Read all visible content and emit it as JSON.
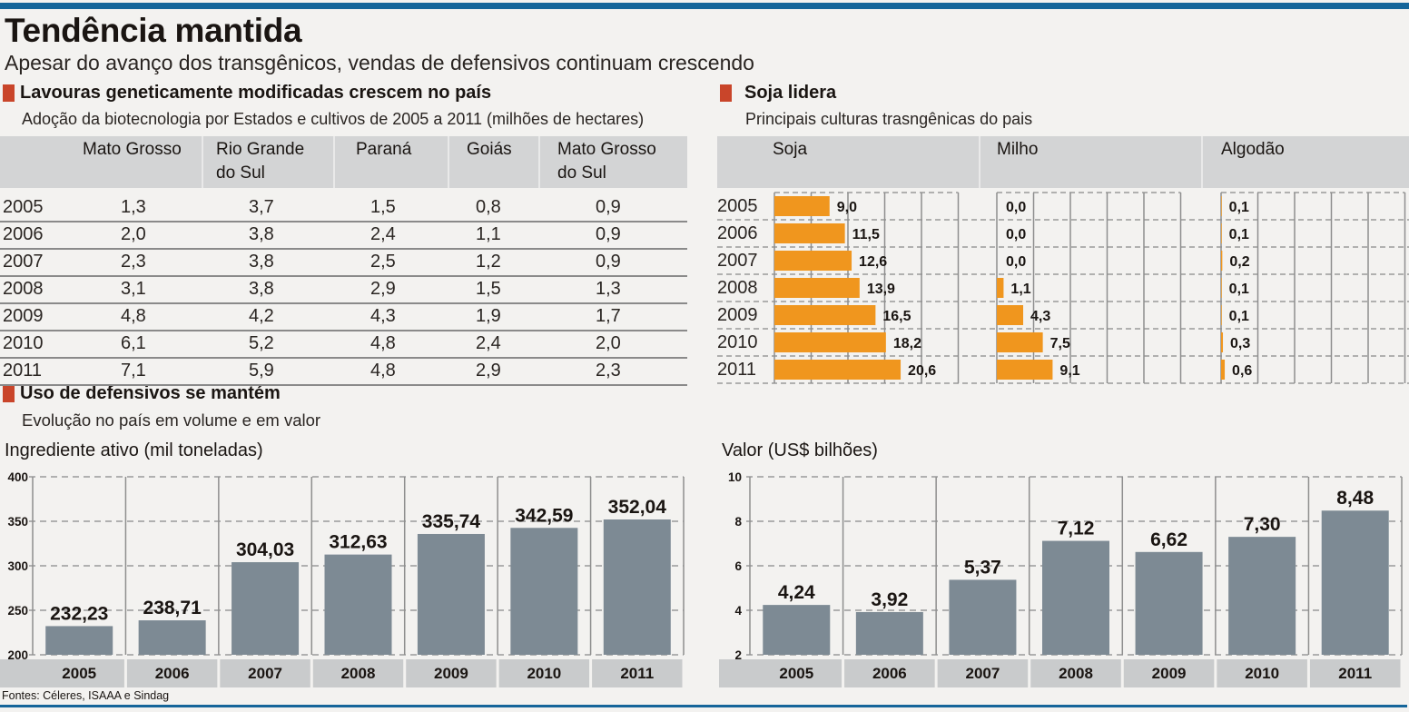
{
  "header": {
    "title": "Tendência mantida",
    "subtitle": "Apesar do avanço dos transgênicos, vendas de defensivos continuam crescendo"
  },
  "sections": {
    "pesticides": {
      "title": "Uso de defensivos se mantém",
      "subtitle": "Evolução no país em volume e em valor"
    }
  },
  "source": "Fontes: Céleres, ISAAA e Sindag",
  "colors": {
    "accent_bar": "#15659a",
    "section_marker": "#c9452a",
    "orange_bar": "#f0961e",
    "gray_bar": "#7d8a94",
    "header_gray": "#d3d4d5",
    "axis_label_box": "#c9cbcc",
    "background": "#f3f2f0"
  },
  "chart_data": [
    {
      "type": "table",
      "title": "Lavouras geneticamente modificadas crescem no país",
      "subtitle": "Adoção da biotecnologia por Estados e cultivos de 2005 a 2011 (milhões de hectares)",
      "columns": [
        {
          "line1": "Mato Grosso",
          "line2": ""
        },
        {
          "line1": "Rio Grande",
          "line2": "do Sul"
        },
        {
          "line1": "Paraná",
          "line2": ""
        },
        {
          "line1": "Goiás",
          "line2": ""
        },
        {
          "line1": "Mato Grosso",
          "line2": "do Sul"
        }
      ],
      "rows": [
        {
          "year": "2005",
          "values": [
            "1,3",
            "3,7",
            "1,5",
            "0,8",
            "0,9"
          ]
        },
        {
          "year": "2006",
          "values": [
            "2,0",
            "3,8",
            "2,4",
            "1,1",
            "0,9"
          ]
        },
        {
          "year": "2007",
          "values": [
            "2,3",
            "3,8",
            "2,5",
            "1,2",
            "0,9"
          ]
        },
        {
          "year": "2008",
          "values": [
            "3,1",
            "3,8",
            "2,9",
            "1,5",
            "1,3"
          ]
        },
        {
          "year": "2009",
          "values": [
            "4,8",
            "4,2",
            "4,3",
            "1,9",
            "1,7"
          ]
        },
        {
          "year": "2010",
          "values": [
            "6,1",
            "5,2",
            "4,8",
            "2,4",
            "2,0"
          ]
        },
        {
          "year": "2011",
          "values": [
            "7,1",
            "5,9",
            "4,8",
            "2,9",
            "2,3"
          ]
        }
      ]
    },
    {
      "type": "bar",
      "orientation": "horizontal",
      "title": "Soja lidera",
      "subtitle": "Principais culturas trasngênicas do pais",
      "categories": [
        "2005",
        "2006",
        "2007",
        "2008",
        "2009",
        "2010",
        "2011"
      ],
      "series": [
        {
          "name": "Soja",
          "values": [
            9.0,
            11.5,
            12.6,
            13.9,
            16.5,
            18.2,
            20.6
          ],
          "labels": [
            "9,0",
            "11,5",
            "12,6",
            "13,9",
            "16,5",
            "18,2",
            "20,6"
          ]
        },
        {
          "name": "Milho",
          "values": [
            0.0,
            0.0,
            0.0,
            1.1,
            4.3,
            7.5,
            9.1
          ],
          "labels": [
            "0,0",
            "0,0",
            "0,0",
            "1,1",
            "4,3",
            "7,5",
            "9,1"
          ]
        },
        {
          "name": "Algodão",
          "values": [
            0.1,
            0.1,
            0.2,
            0.1,
            0.1,
            0.3,
            0.6
          ],
          "labels": [
            "0,1",
            "0,1",
            "0,2",
            "0,1",
            "0,1",
            "0,3",
            "0,6"
          ]
        }
      ],
      "xlim": [
        0,
        30
      ],
      "grid_step": 6,
      "grid": true
    },
    {
      "type": "bar",
      "title": "Ingrediente ativo (mil toneladas)",
      "xlabel": "",
      "ylabel": "",
      "categories": [
        "2005",
        "2006",
        "2007",
        "2008",
        "2009",
        "2010",
        "2011"
      ],
      "values": [
        232.23,
        238.71,
        304.03,
        312.63,
        335.74,
        342.59,
        352.04
      ],
      "labels": [
        "232,23",
        "238,71",
        "304,03",
        "312,63",
        "335,74",
        "342,59",
        "352,04"
      ],
      "ylim": [
        200,
        400
      ],
      "yticks": [
        200,
        250,
        300,
        350,
        400
      ],
      "grid": true
    },
    {
      "type": "bar",
      "title": "Valor (US$ bilhões)",
      "xlabel": "",
      "ylabel": "",
      "categories": [
        "2005",
        "2006",
        "2007",
        "2008",
        "2009",
        "2010",
        "2011"
      ],
      "values": [
        4.24,
        3.92,
        5.37,
        7.12,
        6.62,
        7.3,
        8.48
      ],
      "labels": [
        "4,24",
        "3,92",
        "5,37",
        "7,12",
        "6,62",
        "7,30",
        "8,48"
      ],
      "ylim": [
        2,
        10
      ],
      "yticks": [
        2,
        4,
        6,
        8,
        10
      ],
      "grid": true
    }
  ]
}
